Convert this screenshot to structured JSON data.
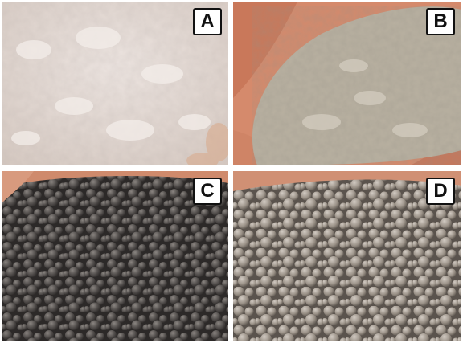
{
  "panels": [
    {
      "label": "A",
      "content": "powder-white",
      "base_color": "#e4d9d3"
    },
    {
      "label": "B",
      "content": "powder-grey-in-hand",
      "base_color": "#b9b1a1"
    },
    {
      "label": "C",
      "content": "granules-dark-in-hand",
      "base_color": "#4f4b49"
    },
    {
      "label": "D",
      "content": "granules-light-grey",
      "base_color": "#9c9389"
    }
  ]
}
